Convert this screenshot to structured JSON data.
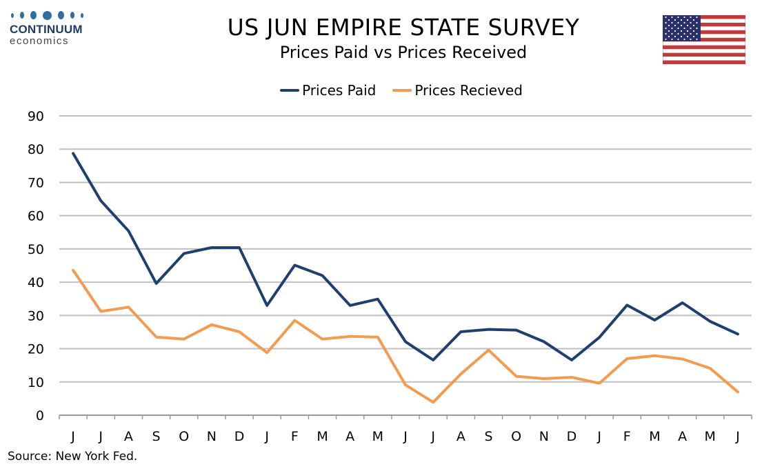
{
  "logo": {
    "name": "CONTINUUM",
    "sub": "economics"
  },
  "header": {
    "title": "US JUN EMPIRE STATE SURVEY",
    "subtitle": "Prices Paid vs Prices Received"
  },
  "colors": {
    "prices_paid": "#1f3f6e",
    "prices_received": "#f39c4f",
    "grid": "#bfbfbf"
  },
  "flag": "us-flag",
  "source": "Source: New York Fed.",
  "chart_data": {
    "type": "line",
    "categories": [
      "J",
      "J",
      "A",
      "S",
      "O",
      "N",
      "D",
      "J",
      "F",
      "M",
      "A",
      "M",
      "J",
      "J",
      "A",
      "S",
      "O",
      "N",
      "D",
      "J",
      "F",
      "M",
      "A",
      "M",
      "J"
    ],
    "series": [
      {
        "name": "Prices Paid",
        "values": [
          78.7,
          64.5,
          55.4,
          39.6,
          48.6,
          50.4,
          50.4,
          33.0,
          45.1,
          42.0,
          33.0,
          34.9,
          22.1,
          16.6,
          25.1,
          25.8,
          25.6,
          22.1,
          16.6,
          23.4,
          33.1,
          28.6,
          33.8,
          28.2,
          24.4
        ]
      },
      {
        "name": "Prices Recieved",
        "values": [
          43.6,
          31.2,
          32.5,
          23.5,
          22.9,
          27.2,
          25.1,
          18.8,
          28.5,
          22.9,
          23.7,
          23.5,
          9.1,
          3.9,
          12.4,
          19.6,
          11.7,
          11.0,
          11.4,
          9.6,
          17.0,
          17.9,
          16.9,
          14.1,
          7.0
        ]
      }
    ],
    "ylim": [
      0,
      90
    ],
    "yticks": [
      "0",
      "10",
      "20",
      "30",
      "40",
      "50",
      "60",
      "70",
      "80",
      "90"
    ],
    "grid": true,
    "legend": "top-center"
  }
}
